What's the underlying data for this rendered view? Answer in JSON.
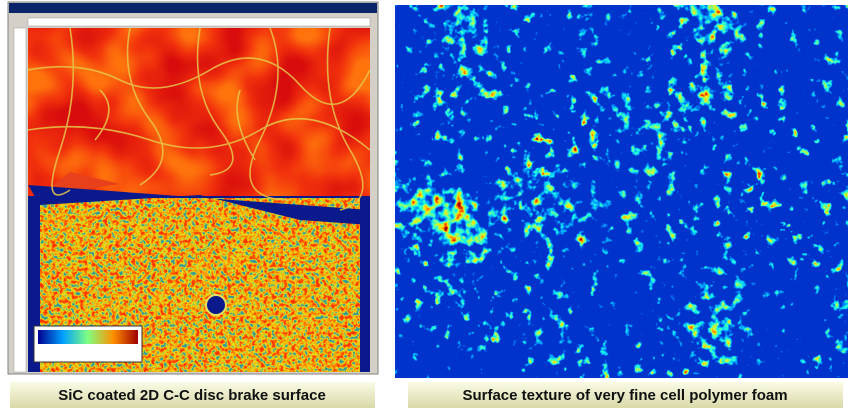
{
  "captions": {
    "left": "SiC coated 2D C-C disc brake surface",
    "right": "Surface texture of very fine cell polymer foam"
  }
}
